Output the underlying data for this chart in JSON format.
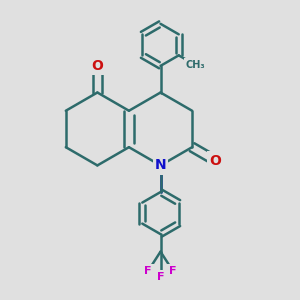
{
  "background_color": "#e0e0e0",
  "bond_color": "#2d6b6b",
  "bond_width": 1.8,
  "nitrogen_color": "#1010cc",
  "oxygen_color": "#cc1010",
  "fluorine_color": "#cc00cc",
  "figsize": [
    3.0,
    3.0
  ],
  "dpi": 100,
  "xlim": [
    -1.5,
    1.8
  ],
  "ylim": [
    -2.2,
    2.0
  ]
}
